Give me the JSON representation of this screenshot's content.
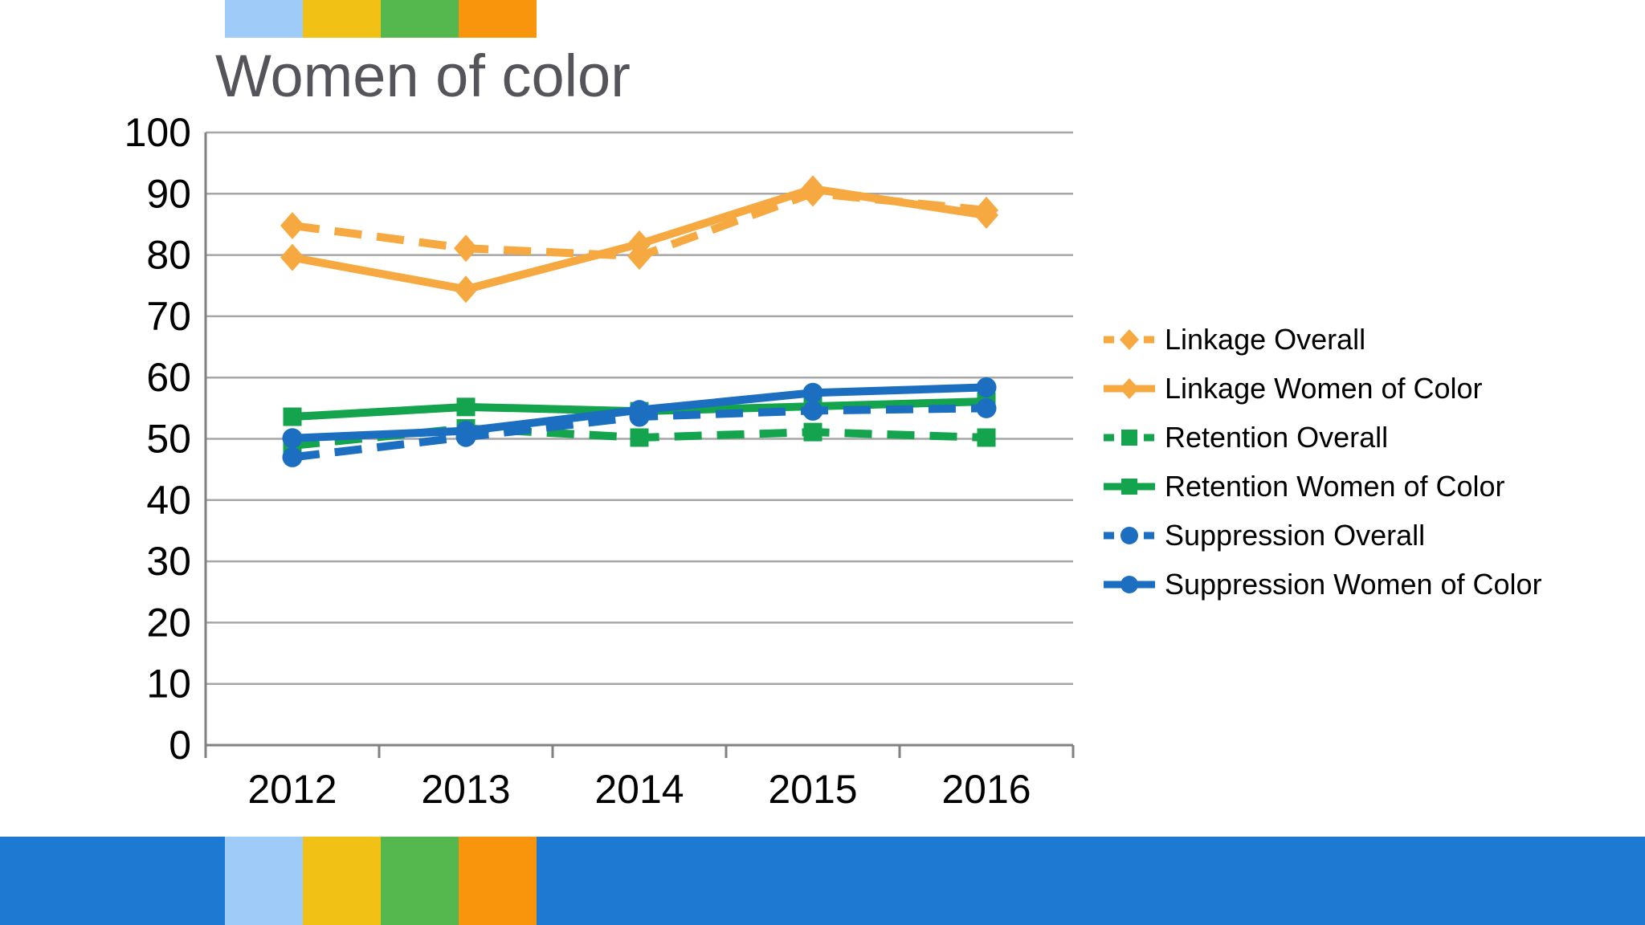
{
  "slide": {
    "background": "#ffffff",
    "accent_bar_colors": [
      "#9ECBF7",
      "#F1C215",
      "#55B84F",
      "#F8950C"
    ],
    "bottom_bar_color": "#1E79D3"
  },
  "chart_data": {
    "type": "line",
    "title": "Women of color",
    "title_color": "#55545A",
    "categories": [
      "2012",
      "2013",
      "2014",
      "2015",
      "2016"
    ],
    "series": [
      {
        "name": "Linkage Overall",
        "color": "#F7A941",
        "dash": true,
        "marker": "diamond",
        "values": [
          84.8,
          81.1,
          79.8,
          90.1,
          87.3
        ]
      },
      {
        "name": "Linkage Women of Color",
        "color": "#F7A941",
        "dash": false,
        "marker": "diamond",
        "values": [
          79.6,
          74.4,
          81.8,
          90.8,
          86.5
        ]
      },
      {
        "name": "Retention Overall",
        "color": "#14A44D",
        "dash": true,
        "marker": "square",
        "values": [
          48.9,
          51.7,
          50.2,
          51.1,
          50.2
        ]
      },
      {
        "name": "Retention Women of Color",
        "color": "#14A44D",
        "dash": false,
        "marker": "square",
        "values": [
          53.6,
          55.2,
          54.5,
          55.3,
          56.1
        ]
      },
      {
        "name": "Suppression Overall",
        "color": "#1C6FC0",
        "dash": true,
        "marker": "circle",
        "values": [
          47.0,
          50.3,
          53.6,
          54.6,
          55.0
        ]
      },
      {
        "name": "Suppression Women of Color",
        "color": "#1C6FC0",
        "dash": false,
        "marker": "circle",
        "values": [
          50.1,
          51.3,
          54.7,
          57.5,
          58.4
        ]
      }
    ],
    "ylim": [
      0,
      100
    ],
    "ytick_step": 10,
    "ytick_labels": [
      "0",
      "10",
      "20",
      "30",
      "40",
      "50",
      "60",
      "70",
      "80",
      "90",
      "100"
    ],
    "grid": true,
    "gridline_color": "#A6A6A6",
    "axis_color": "#808080",
    "tick_label_color": "#000000",
    "legend_position": "right"
  }
}
